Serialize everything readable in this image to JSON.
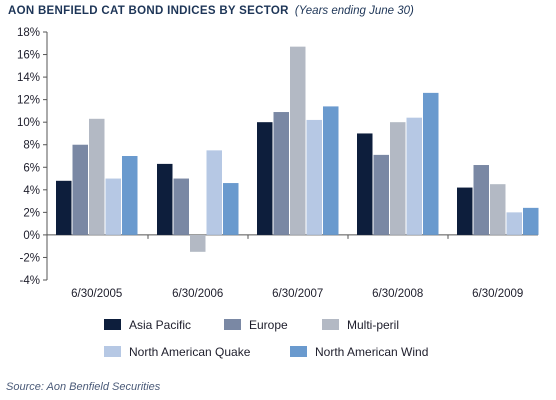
{
  "title": "AON BENFIELD CAT BOND INDICES BY SECTOR",
  "subtitle": "(Years ending June 30)",
  "source": "Source: Aon Benfield Securities",
  "chart_data": {
    "type": "bar",
    "categories": [
      "6/30/2005",
      "6/30/2006",
      "6/30/2007",
      "6/30/2008",
      "6/30/2009"
    ],
    "series": [
      {
        "name": "Asia Pacific",
        "color": "#0d1e3c",
        "values": [
          4.8,
          6.3,
          10.0,
          9.0,
          4.2
        ]
      },
      {
        "name": "Europe",
        "color": "#7a88a4",
        "values": [
          8.0,
          5.0,
          10.9,
          7.1,
          6.2
        ]
      },
      {
        "name": "Multi-peril",
        "color": "#b3b9c4",
        "values": [
          10.3,
          -1.5,
          16.7,
          10.0,
          4.5
        ]
      },
      {
        "name": "North American Quake",
        "color": "#b6c8e4",
        "values": [
          5.0,
          7.5,
          10.2,
          10.4,
          2.0
        ]
      },
      {
        "name": "North American Wind",
        "color": "#6a9ace",
        "values": [
          7.0,
          4.6,
          11.4,
          12.6,
          2.4
        ]
      }
    ],
    "yticks": [
      "18%",
      "16%",
      "14%",
      "12%",
      "10%",
      "8%",
      "6%",
      "4%",
      "2%",
      "0%",
      "-2%",
      "-4%"
    ],
    "ylim": [
      -4,
      18
    ],
    "xlabel": "",
    "ylabel": "",
    "grid": false,
    "legend_position": "bottom"
  }
}
